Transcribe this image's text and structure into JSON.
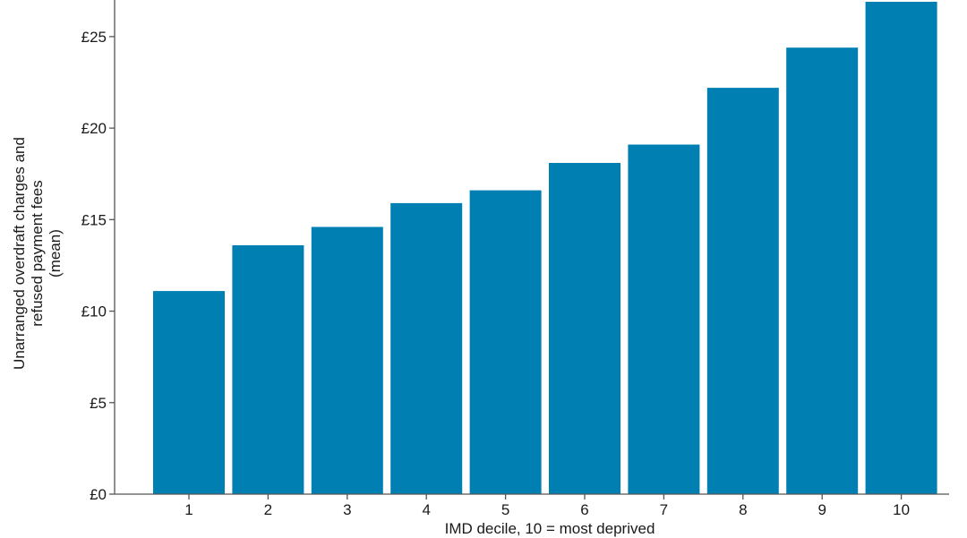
{
  "chart_data": {
    "type": "bar",
    "categories": [
      "1",
      "2",
      "3",
      "4",
      "5",
      "6",
      "7",
      "8",
      "9",
      "10"
    ],
    "values": [
      11.1,
      13.6,
      14.6,
      15.9,
      16.6,
      18.1,
      19.1,
      22.2,
      24.4,
      26.9
    ],
    "xlabel": "IMD decile, 10 = most deprived",
    "ylabel_lines": [
      "Unarranged overdraft charges and",
      "refused payment fees",
      "(mean)"
    ],
    "yticks": [
      0,
      5,
      10,
      15,
      20,
      25
    ],
    "ytick_labels": [
      "£0",
      "£5",
      "£10",
      "£15",
      "£20",
      "£25"
    ],
    "ylim": [
      0,
      27
    ],
    "bar_color": "#0080B2",
    "grid": false
  }
}
